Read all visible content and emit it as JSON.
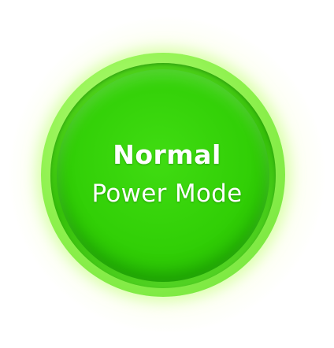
{
  "power_button": {
    "line1": "Normal",
    "line2": "Power Mode",
    "icon": "power-mode-button",
    "state_color": "#31cf06",
    "glow_color": "#eeffaa"
  }
}
